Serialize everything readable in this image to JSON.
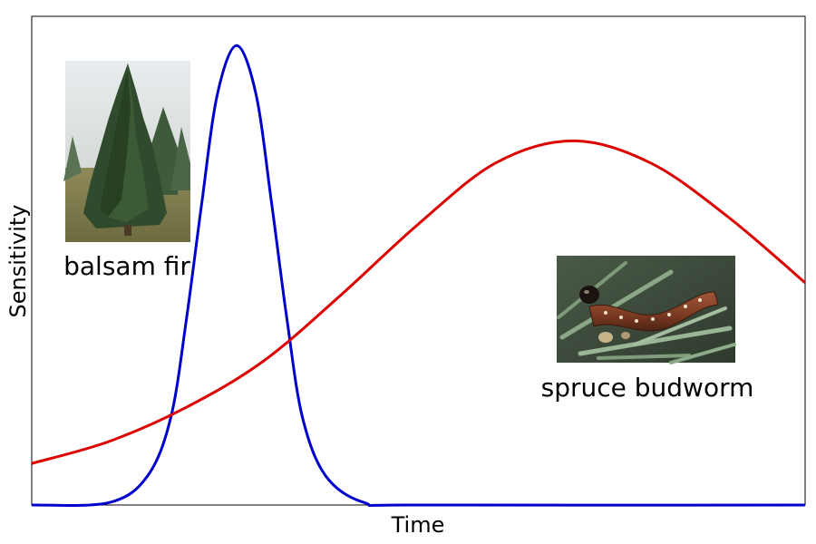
{
  "chart_data": {
    "type": "line",
    "xlabel": "Time",
    "ylabel": "Sensitivity",
    "xlim": [
      0,
      1
    ],
    "ylim": [
      0,
      1
    ],
    "grid": false,
    "series": [
      {
        "color": "#0000cc",
        "peak_x": 0.265,
        "peak_y": 0.94,
        "x": [
          0.0,
          0.1,
          0.15,
          0.18,
          0.2,
          0.22,
          0.24,
          0.265,
          0.29,
          0.31,
          0.33,
          0.35,
          0.38,
          0.43,
          0.5,
          1.0
        ],
        "y": [
          0.0,
          0.005,
          0.06,
          0.18,
          0.38,
          0.62,
          0.84,
          0.94,
          0.84,
          0.62,
          0.38,
          0.18,
          0.06,
          0.005,
          0.0,
          0.0
        ]
      },
      {
        "color": "#dd0000",
        "peak_x": 0.7,
        "peak_y": 0.745,
        "x": [
          0.0,
          0.1,
          0.2,
          0.3,
          0.4,
          0.5,
          0.6,
          0.7,
          0.8,
          0.9,
          1.0
        ],
        "y": [
          0.085,
          0.13,
          0.2,
          0.295,
          0.43,
          0.575,
          0.7,
          0.745,
          0.7,
          0.59,
          0.455
        ]
      }
    ],
    "annotations": [
      {
        "text": "balsam fir",
        "image": "balsam-fir-tree-photo"
      },
      {
        "text": "spruce budworm",
        "image": "spruce-budworm-caterpillar-photo"
      }
    ]
  }
}
